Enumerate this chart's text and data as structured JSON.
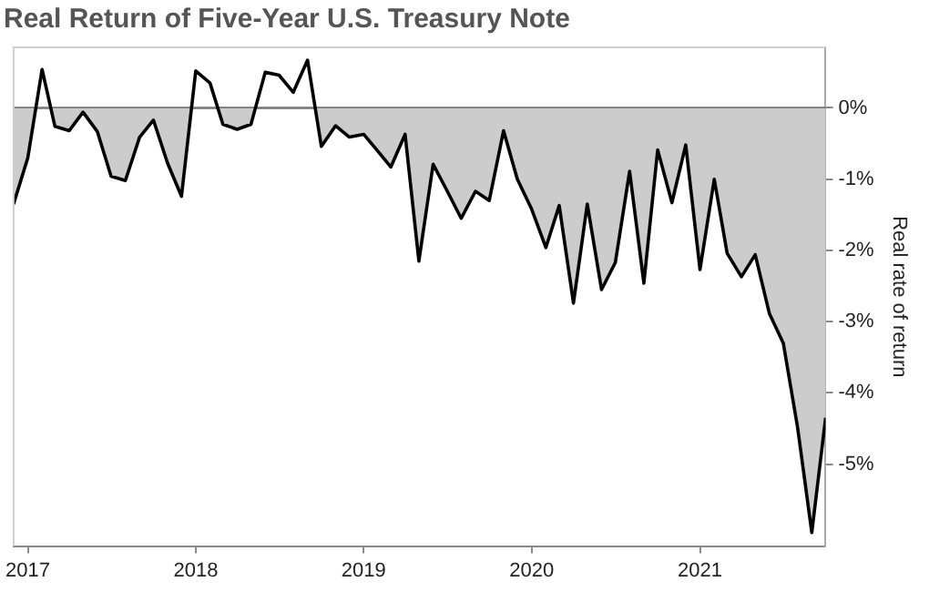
{
  "chart_data": {
    "type": "area",
    "title": "Real Return of Five-Year U.S. Treasury Note",
    "ylabel": "Real rate of return",
    "x": [
      "2016-12",
      "2017-01",
      "2017-02",
      "2017-03",
      "2017-04",
      "2017-05",
      "2017-06",
      "2017-07",
      "2017-08",
      "2017-09",
      "2017-10",
      "2017-11",
      "2017-12",
      "2018-01",
      "2018-02",
      "2018-03",
      "2018-04",
      "2018-05",
      "2018-06",
      "2018-07",
      "2018-08",
      "2018-09",
      "2018-10",
      "2018-11",
      "2018-12",
      "2019-01",
      "2019-02",
      "2019-03",
      "2019-04",
      "2019-05",
      "2019-06",
      "2019-07",
      "2019-08",
      "2019-09",
      "2019-10",
      "2019-11",
      "2019-12",
      "2020-01",
      "2020-02",
      "2020-03",
      "2020-04",
      "2020-05",
      "2020-06",
      "2020-07",
      "2020-08",
      "2020-09",
      "2020-10",
      "2020-11",
      "2020-12",
      "2021-01",
      "2021-02",
      "2021-03",
      "2021-04",
      "2021-05",
      "2021-06",
      "2021-07",
      "2021-08",
      "2021-09",
      "2021-10"
    ],
    "series": [
      {
        "color": "#000000",
        "values": [
          -1.35,
          -0.7,
          0.54,
          -0.26,
          -0.32,
          -0.06,
          -0.33,
          -0.96,
          -1.02,
          -0.41,
          -0.17,
          -0.78,
          -1.24,
          0.52,
          0.35,
          -0.23,
          -0.3,
          -0.23,
          0.5,
          0.46,
          0.22,
          0.67,
          -0.54,
          -0.25,
          -0.41,
          -0.37,
          -0.61,
          -0.83,
          -0.37,
          -2.15,
          -0.79,
          -1.16,
          -1.55,
          -1.17,
          -1.3,
          -0.32,
          -1.0,
          -1.42,
          -1.96,
          -1.37,
          -2.74,
          -1.35,
          -2.55,
          -2.17,
          -0.89,
          -2.46,
          -0.59,
          -1.33,
          -0.52,
          -2.27,
          -1.0,
          -2.04,
          -2.37,
          -2.06,
          -2.89,
          -3.3,
          -4.48,
          -5.96,
          -4.35
        ]
      }
    ],
    "xlim": [
      "2016-12",
      "2021-10"
    ],
    "xticks": [
      "2017",
      "2018",
      "2019",
      "2020",
      "2021"
    ],
    "ylim": [
      -6.15,
      0.85
    ],
    "yticks": [
      {
        "value": 0,
        "label": "0%"
      },
      {
        "value": -1,
        "label": "-1%"
      },
      {
        "value": -2,
        "label": "-2%"
      },
      {
        "value": -3,
        "label": "-3%"
      },
      {
        "value": -4,
        "label": "-4%"
      },
      {
        "value": -5,
        "label": "-5%"
      }
    ],
    "ref_lines": [
      {
        "axis": "y",
        "value": 0,
        "color": "#666666"
      }
    ],
    "grid": false,
    "legend": false
  }
}
